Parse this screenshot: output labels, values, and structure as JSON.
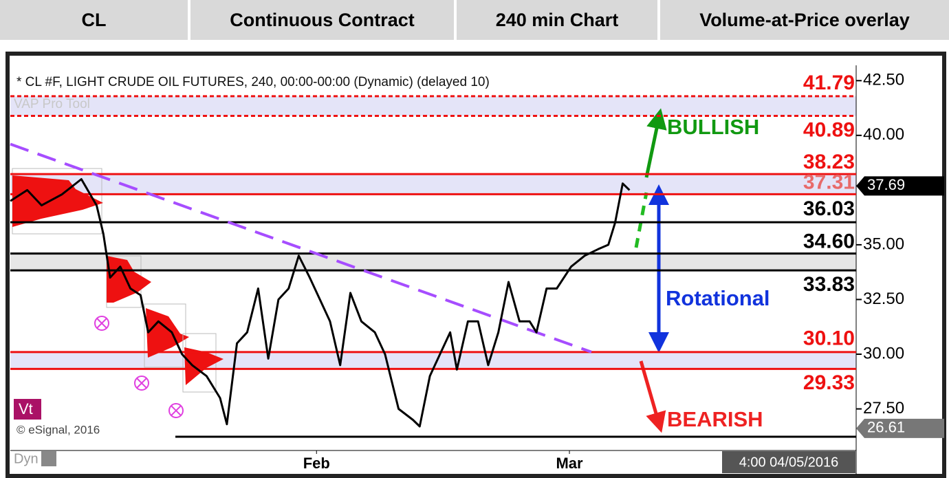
{
  "header": {
    "cells": [
      "CL",
      "Continuous Contract",
      "240 min Chart",
      "Volume-at-Price overlay"
    ]
  },
  "chart_data": {
    "type": "line",
    "title": "* CL #F, LIGHT CRUDE OIL FUTURES, 240, 00:00-00:00 (Dynamic) (delayed 10)",
    "tool_label": "VAP Pro Tool",
    "copyright": "© eSignal, 2016",
    "badge": "Vt",
    "mode": "Dyn",
    "timestamp": "4:00 04/05/2016",
    "annotations": {
      "bullish": "BULLISH",
      "rotational": "Rotational",
      "bearish": "BEARISH"
    },
    "series": [
      {
        "color": "#000000",
        "x": [
          0,
          2.0,
          3.7,
          6.1,
          8.4,
          10.2,
          11.0,
          11.8,
          13.0,
          14.2,
          15.4,
          16.3,
          17.5,
          19.1,
          20.3,
          21.5,
          23.2,
          24.8,
          25.6,
          26.8,
          28.0,
          29.3,
          30.5,
          31.7,
          32.9,
          34.1,
          35.4,
          36.6,
          37.8,
          39.0,
          40.2,
          41.5,
          43.1,
          44.3,
          45.9,
          47.6,
          48.4,
          49.6,
          50.8,
          52.0,
          52.8,
          54.1,
          55.3,
          56.5,
          57.7,
          58.9,
          60.2,
          61.4,
          62.2,
          63.4,
          64.6,
          66.3,
          67.9,
          69.5,
          70.7,
          71.5,
          72.4,
          73.2
        ],
        "values": [
          37.0,
          37.5,
          36.8,
          37.3,
          38.0,
          36.8,
          35.5,
          33.5,
          34.0,
          33.0,
          32.7,
          31.0,
          31.5,
          31.0,
          30.0,
          29.5,
          29.0,
          28.0,
          26.8,
          30.5,
          31.0,
          33.0,
          29.8,
          32.5,
          33.0,
          34.5,
          33.5,
          32.5,
          31.5,
          29.5,
          32.8,
          31.5,
          31.0,
          30.0,
          27.5,
          27.0,
          26.7,
          29.0,
          30.0,
          31.0,
          29.3,
          31.5,
          31.5,
          29.5,
          31.0,
          33.3,
          31.5,
          31.5,
          31.0,
          33.0,
          33.0,
          34.0,
          34.5,
          34.8,
          35.0,
          36.0,
          37.8,
          37.5
        ]
      }
    ],
    "trendline": {
      "color": "#a64dff",
      "x": [
        0,
        68.7
      ],
      "values": [
        39.6,
        30.1
      ]
    },
    "levels": [
      {
        "values": [
          41.79,
          40.89
        ],
        "color": "#ee1111",
        "dashed": true,
        "fill": "#e4e4f8"
      },
      {
        "values": [
          38.23,
          37.31
        ],
        "color": "#ee1111",
        "fill": "#e4e4f8"
      },
      {
        "values": [
          36.03
        ],
        "color": "#000000"
      },
      {
        "values": [
          {
            "value": 34.6,
            "label": "34.60"
          },
          33.83
        ],
        "color": "#000000",
        "fill": "#e6e6e6"
      },
      {
        "values": [
          {
            "value": 30.1,
            "label": "30.10"
          },
          29.33
        ],
        "color": "#ee1111",
        "fill": "#e4e4f8"
      }
    ],
    "last_price": 37.69,
    "low_marker": 26.61,
    "xlim": [
      0,
      100
    ],
    "ylim": [
      25.6,
      43.2
    ],
    "xticks": [
      {
        "value": 36.2,
        "label": "Feb"
      },
      {
        "value": 66.1,
        "label": "Mar"
      }
    ],
    "yticks": [
      {
        "value": 42.5,
        "label": "42.50"
      },
      {
        "value": 40,
        "label": "40.00"
      },
      {
        "value": 35,
        "label": "35.00"
      },
      {
        "value": 32.5,
        "label": "32.50"
      },
      {
        "value": 30,
        "label": "30.00"
      },
      {
        "value": 27.5,
        "label": "27.50"
      }
    ]
  }
}
